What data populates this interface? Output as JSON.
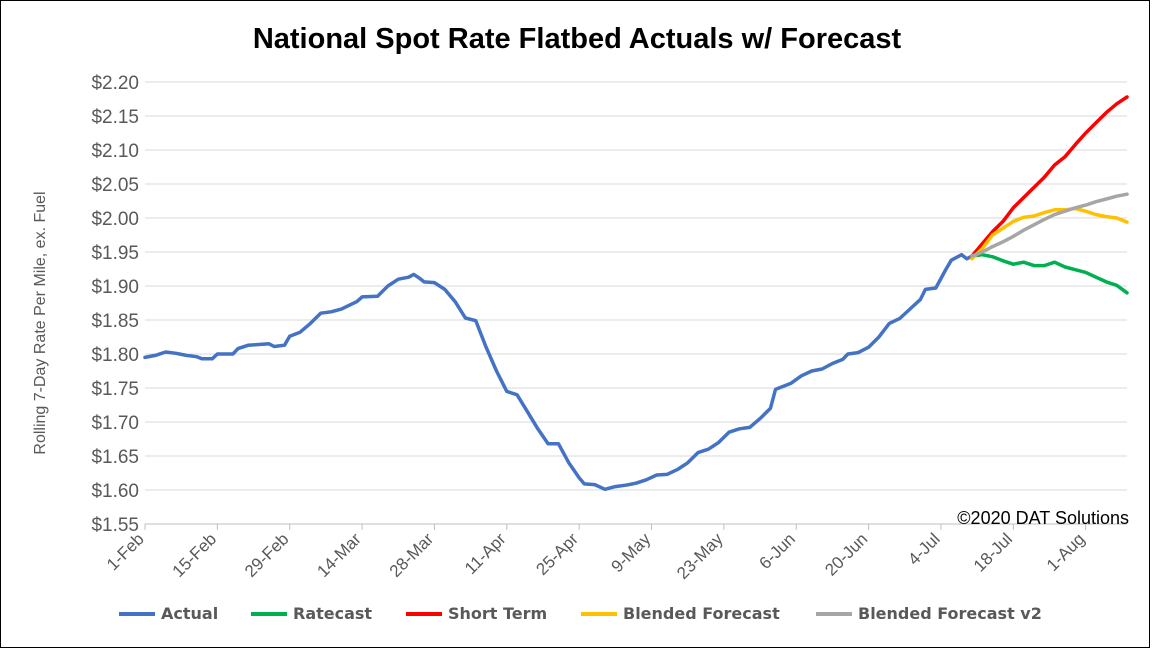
{
  "chart_data": {
    "type": "line",
    "title": "National Spot Rate Flatbed Actuals w/ Forecast",
    "ylabel": "Rolling 7-Day Rate Per Mile, ex. Fuel",
    "xlabel": "",
    "ylim": [
      1.55,
      2.2
    ],
    "yticks": [
      1.55,
      1.6,
      1.65,
      1.7,
      1.75,
      1.8,
      1.85,
      1.9,
      1.95,
      2.0,
      2.05,
      2.1,
      2.15,
      2.2
    ],
    "ytick_labels": [
      "$1.55",
      "$1.60",
      "$1.65",
      "$1.70",
      "$1.75",
      "$1.80",
      "$1.85",
      "$1.90",
      "$1.95",
      "$2.00",
      "$2.05",
      "$2.10",
      "$2.15",
      "$2.20"
    ],
    "x_range": [
      "2020-02-01",
      "2020-08-09"
    ],
    "xticks": [
      "2020-02-01",
      "2020-02-15",
      "2020-02-29",
      "2020-03-14",
      "2020-03-28",
      "2020-04-11",
      "2020-04-25",
      "2020-05-09",
      "2020-05-23",
      "2020-06-06",
      "2020-06-20",
      "2020-07-04",
      "2020-07-18",
      "2020-08-01"
    ],
    "xtick_labels": [
      "1-Feb",
      "15-Feb",
      "29-Feb",
      "14-Mar",
      "28-Mar",
      "11-Apr",
      "25-Apr",
      "9-May",
      "23-May",
      "6-Jun",
      "20-Jun",
      "4-Jul",
      "18-Jul",
      "1-Aug"
    ],
    "grid": "horizontal",
    "legend_position": "bottom",
    "annotation": "©2020 DAT Solutions",
    "series": [
      {
        "name": "Actual",
        "color": "#4472c4",
        "points": [
          [
            "2020-02-01",
            1.795
          ],
          [
            "2020-02-03",
            1.798
          ],
          [
            "2020-02-05",
            1.803
          ],
          [
            "2020-02-07",
            1.801
          ],
          [
            "2020-02-09",
            1.798
          ],
          [
            "2020-02-11",
            1.796
          ],
          [
            "2020-02-12",
            1.793
          ],
          [
            "2020-02-14",
            1.793
          ],
          [
            "2020-02-15",
            1.8
          ],
          [
            "2020-02-18",
            1.8
          ],
          [
            "2020-02-19",
            1.808
          ],
          [
            "2020-02-21",
            1.813
          ],
          [
            "2020-02-23",
            1.814
          ],
          [
            "2020-02-25",
            1.815
          ],
          [
            "2020-02-26",
            1.811
          ],
          [
            "2020-02-28",
            1.813
          ],
          [
            "2020-02-29",
            1.826
          ],
          [
            "2020-03-02",
            1.832
          ],
          [
            "2020-03-04",
            1.845
          ],
          [
            "2020-03-06",
            1.86
          ],
          [
            "2020-03-08",
            1.862
          ],
          [
            "2020-03-10",
            1.866
          ],
          [
            "2020-03-13",
            1.877
          ],
          [
            "2020-03-14",
            1.884
          ],
          [
            "2020-03-17",
            1.885
          ],
          [
            "2020-03-19",
            1.9
          ],
          [
            "2020-03-21",
            1.91
          ],
          [
            "2020-03-23",
            1.913
          ],
          [
            "2020-03-24",
            1.917
          ],
          [
            "2020-03-25",
            1.912
          ],
          [
            "2020-03-26",
            1.906
          ],
          [
            "2020-03-28",
            1.905
          ],
          [
            "2020-03-30",
            1.895
          ],
          [
            "2020-04-01",
            1.877
          ],
          [
            "2020-04-03",
            1.853
          ],
          [
            "2020-04-05",
            1.849
          ],
          [
            "2020-04-07",
            1.81
          ],
          [
            "2020-04-09",
            1.775
          ],
          [
            "2020-04-11",
            1.745
          ],
          [
            "2020-04-13",
            1.74
          ],
          [
            "2020-04-15",
            1.715
          ],
          [
            "2020-04-17",
            1.69
          ],
          [
            "2020-04-19",
            1.668
          ],
          [
            "2020-04-21",
            1.668
          ],
          [
            "2020-04-23",
            1.64
          ],
          [
            "2020-04-25",
            1.618
          ],
          [
            "2020-04-26",
            1.609
          ],
          [
            "2020-04-28",
            1.608
          ],
          [
            "2020-04-30",
            1.601
          ],
          [
            "2020-05-02",
            1.605
          ],
          [
            "2020-05-04",
            1.607
          ],
          [
            "2020-05-06",
            1.61
          ],
          [
            "2020-05-08",
            1.615
          ],
          [
            "2020-05-10",
            1.622
          ],
          [
            "2020-05-12",
            1.623
          ],
          [
            "2020-05-14",
            1.63
          ],
          [
            "2020-05-16",
            1.64
          ],
          [
            "2020-05-18",
            1.655
          ],
          [
            "2020-05-20",
            1.66
          ],
          [
            "2020-05-22",
            1.67
          ],
          [
            "2020-05-24",
            1.685
          ],
          [
            "2020-05-26",
            1.69
          ],
          [
            "2020-05-28",
            1.692
          ],
          [
            "2020-05-30",
            1.705
          ],
          [
            "2020-06-01",
            1.72
          ],
          [
            "2020-06-02",
            1.748
          ],
          [
            "2020-06-05",
            1.757
          ],
          [
            "2020-06-07",
            1.768
          ],
          [
            "2020-06-09",
            1.775
          ],
          [
            "2020-06-11",
            1.778
          ],
          [
            "2020-06-13",
            1.786
          ],
          [
            "2020-06-15",
            1.792
          ],
          [
            "2020-06-16",
            1.8
          ],
          [
            "2020-06-18",
            1.802
          ],
          [
            "2020-06-20",
            1.81
          ],
          [
            "2020-06-22",
            1.825
          ],
          [
            "2020-06-24",
            1.845
          ],
          [
            "2020-06-26",
            1.852
          ],
          [
            "2020-06-28",
            1.866
          ],
          [
            "2020-06-30",
            1.88
          ],
          [
            "2020-07-01",
            1.895
          ],
          [
            "2020-07-03",
            1.897
          ],
          [
            "2020-07-05",
            1.925
          ],
          [
            "2020-07-06",
            1.938
          ],
          [
            "2020-07-08",
            1.946
          ],
          [
            "2020-07-09",
            1.94
          ],
          [
            "2020-07-10",
            1.944
          ]
        ]
      },
      {
        "name": "Ratecast",
        "color": "#00b050",
        "points": [
          [
            "2020-07-10",
            1.944
          ],
          [
            "2020-07-12",
            1.946
          ],
          [
            "2020-07-14",
            1.943
          ],
          [
            "2020-07-16",
            1.937
          ],
          [
            "2020-07-18",
            1.932
          ],
          [
            "2020-07-20",
            1.935
          ],
          [
            "2020-07-22",
            1.93
          ],
          [
            "2020-07-24",
            1.93
          ],
          [
            "2020-07-26",
            1.935
          ],
          [
            "2020-07-28",
            1.928
          ],
          [
            "2020-07-30",
            1.924
          ],
          [
            "2020-08-01",
            1.92
          ],
          [
            "2020-08-03",
            1.913
          ],
          [
            "2020-08-05",
            1.906
          ],
          [
            "2020-08-07",
            1.901
          ],
          [
            "2020-08-09",
            1.89
          ]
        ]
      },
      {
        "name": "Short Term",
        "color": "#ff0000",
        "points": [
          [
            "2020-07-10",
            1.944
          ],
          [
            "2020-07-12",
            1.962
          ],
          [
            "2020-07-14",
            1.98
          ],
          [
            "2020-07-16",
            1.995
          ],
          [
            "2020-07-18",
            2.015
          ],
          [
            "2020-07-20",
            2.03
          ],
          [
            "2020-07-22",
            2.045
          ],
          [
            "2020-07-24",
            2.06
          ],
          [
            "2020-07-26",
            2.078
          ],
          [
            "2020-07-28",
            2.09
          ],
          [
            "2020-07-30",
            2.108
          ],
          [
            "2020-08-01",
            2.125
          ],
          [
            "2020-08-03",
            2.14
          ],
          [
            "2020-08-05",
            2.155
          ],
          [
            "2020-08-07",
            2.168
          ],
          [
            "2020-08-09",
            2.178
          ]
        ]
      },
      {
        "name": "Blended Forecast",
        "color": "#ffc000",
        "points": [
          [
            "2020-07-10",
            1.94
          ],
          [
            "2020-07-12",
            1.955
          ],
          [
            "2020-07-14",
            1.975
          ],
          [
            "2020-07-16",
            1.985
          ],
          [
            "2020-07-18",
            1.995
          ],
          [
            "2020-07-20",
            2.001
          ],
          [
            "2020-07-22",
            2.003
          ],
          [
            "2020-07-24",
            2.008
          ],
          [
            "2020-07-26",
            2.012
          ],
          [
            "2020-07-28",
            2.012
          ],
          [
            "2020-07-30",
            2.014
          ],
          [
            "2020-08-01",
            2.01
          ],
          [
            "2020-08-03",
            2.005
          ],
          [
            "2020-08-05",
            2.002
          ],
          [
            "2020-08-07",
            2.0
          ],
          [
            "2020-08-09",
            1.994
          ]
        ]
      },
      {
        "name": "Blended Forecast v2",
        "color": "#a6a6a6",
        "points": [
          [
            "2020-07-10",
            1.944
          ],
          [
            "2020-07-12",
            1.95
          ],
          [
            "2020-07-14",
            1.958
          ],
          [
            "2020-07-16",
            1.965
          ],
          [
            "2020-07-18",
            1.973
          ],
          [
            "2020-07-20",
            1.982
          ],
          [
            "2020-07-22",
            1.99
          ],
          [
            "2020-07-24",
            1.998
          ],
          [
            "2020-07-26",
            2.005
          ],
          [
            "2020-07-28",
            2.01
          ],
          [
            "2020-07-30",
            2.015
          ],
          [
            "2020-08-01",
            2.019
          ],
          [
            "2020-08-03",
            2.024
          ],
          [
            "2020-08-05",
            2.028
          ],
          [
            "2020-08-07",
            2.032
          ],
          [
            "2020-08-09",
            2.035
          ]
        ]
      }
    ]
  }
}
